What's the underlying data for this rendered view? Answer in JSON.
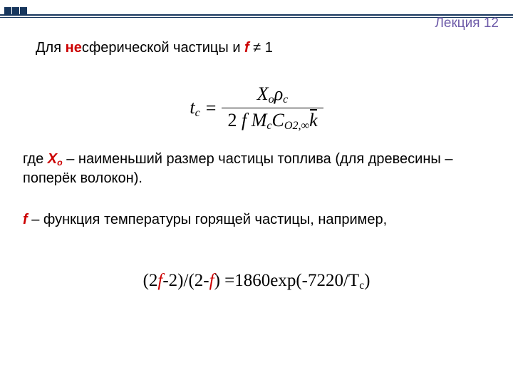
{
  "colors": {
    "square": "#17365d",
    "line": "#17365d",
    "red": "#cc0000",
    "lecture": "#6d5aa8",
    "text": "#000000",
    "background": "#ffffff"
  },
  "lecture_label": "Лекция 12",
  "intro": {
    "part1": "Для ",
    "part_red_bold": "не",
    "part2": "сферической частицы и ",
    "f_label": "f",
    "part3": " ≠ 1"
  },
  "formula": {
    "lhs_base": "t",
    "lhs_sub": "c",
    "num_X": "X",
    "num_X_sub": "o",
    "num_rho": "ρ",
    "num_rho_sub": "c",
    "den_two": "2",
    "den_f": "f",
    "den_M": "M",
    "den_M_sub": "c",
    "den_C": "C",
    "den_C_sub": "O2,∞",
    "den_k": "k"
  },
  "para1": {
    "a": "где ",
    "x": "Х",
    "xsub": "о",
    "b": " – наименьший размер частицы топлива (для древесины – поперёк волокон)."
  },
  "para2": {
    "f": "f",
    "rest": " – функция температуры горящей частицы, например,"
  },
  "eqn2": {
    "a": "(2",
    "f1": "f",
    "b": "-2)/(2-",
    "f2": "f",
    "c": ") =1860exp(-7220/T",
    "sub": "c",
    "d": ")"
  }
}
